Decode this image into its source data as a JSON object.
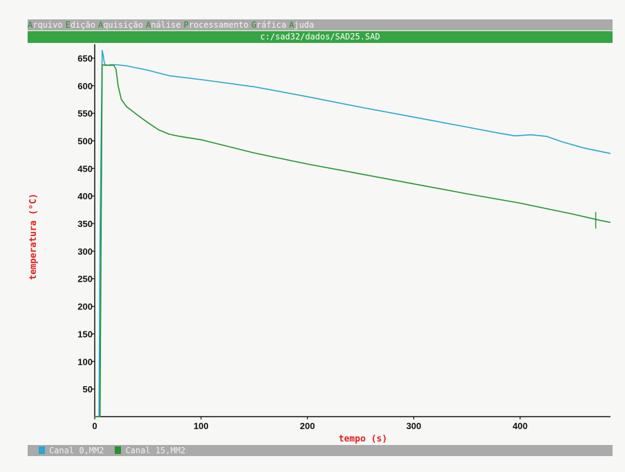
{
  "menu": {
    "items": [
      {
        "hot": "A",
        "rest": "rquivo"
      },
      {
        "hot": "E",
        "rest": "dição"
      },
      {
        "hot": "A",
        "rest": "quisição"
      },
      {
        "hot": "A",
        "rest": "nálise"
      },
      {
        "hot": "P",
        "rest": "rocessamento"
      },
      {
        "hot": "G",
        "rest": "ráfica"
      },
      {
        "hot": "A",
        "rest": "juda"
      }
    ]
  },
  "window": {
    "path": "c:/sad32/dados/SAD25.SAD"
  },
  "legend": [
    {
      "label": "Canal 0,MM2",
      "color": "#2aa6cf"
    },
    {
      "label": "Canal 15,MM2",
      "color": "#22942e"
    }
  ],
  "chart_data": {
    "type": "line",
    "xlabel": "tempo (s)",
    "ylabel": "temperatura (°C)",
    "xlim": [
      0,
      485
    ],
    "ylim": [
      0,
      675
    ],
    "x_ticks": [
      0,
      100,
      200,
      300,
      400
    ],
    "y_ticks": [
      50,
      100,
      150,
      200,
      250,
      300,
      350,
      400,
      450,
      500,
      550,
      600,
      650
    ],
    "series": [
      {
        "name": "Canal 0,MM2",
        "color": "#2aa6cf",
        "x": [
          0,
          4,
          5,
          7,
          8,
          9,
          10,
          12,
          15,
          20,
          30,
          50,
          70,
          100,
          150,
          200,
          250,
          300,
          350,
          380,
          395,
          410,
          425,
          440,
          460,
          485
        ],
        "y": [
          0,
          0,
          330,
          664,
          655,
          642,
          638,
          637,
          638,
          638,
          636,
          628,
          618,
          611,
          598,
          580,
          561,
          543,
          525,
          514,
          509,
          511,
          508,
          498,
          487,
          477
        ]
      },
      {
        "name": "Canal 15,MM2",
        "color": "#22942e",
        "x": [
          0,
          5,
          6,
          7,
          10,
          18,
          20,
          22,
          25,
          30,
          40,
          50,
          60,
          70,
          80,
          100,
          150,
          200,
          250,
          300,
          350,
          400,
          450,
          475,
          485
        ],
        "y": [
          0,
          0,
          320,
          638,
          637,
          637,
          630,
          600,
          575,
          562,
          547,
          533,
          520,
          512,
          508,
          502,
          478,
          458,
          440,
          422,
          404,
          387,
          367,
          356,
          352
        ]
      }
    ]
  }
}
